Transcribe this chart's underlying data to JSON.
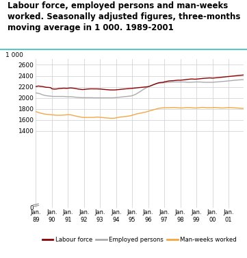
{
  "title": "Labour force, employed persons and man-weeks\nworked. Seasonally adjusted figures, three-months\nmoving average in 1 000. 1989-2001",
  "title_fontsize": 8.5,
  "header_bar_color": "#5bc8c8",
  "grid_color": "#cccccc",
  "ylabel_top": "1 000",
  "yticks": [
    0,
    1400,
    1600,
    1800,
    2000,
    2200,
    2400,
    2600
  ],
  "ylim": [
    0,
    2700
  ],
  "xtick_positions": [
    0,
    12,
    24,
    36,
    48,
    60,
    72,
    84,
    96,
    108,
    120,
    132,
    144
  ],
  "xtick_labels": [
    "Jan.\n89",
    "Jan.\n90",
    "Jan.\n91",
    "Jan.\n92",
    "Jan.\n93",
    "Jan.\n94",
    "Jan.\n95",
    "Jan.\n96",
    "Jan.\n97",
    "Jan.\n98",
    "Jan.\n99",
    "Jan.\n00",
    "Jan.\n01"
  ],
  "legend_entries": [
    {
      "label": "Labour force",
      "color": "#8b0000"
    },
    {
      "label": "Employed persons",
      "color": "#aaaaaa"
    },
    {
      "label": "Man-weeks worked",
      "color": "#f4a742"
    }
  ],
  "labour_force": [
    2205,
    2210,
    2215,
    2210,
    2208,
    2205,
    2200,
    2195,
    2190,
    2190,
    2188,
    2185,
    2165,
    2160,
    2158,
    2160,
    2162,
    2168,
    2170,
    2172,
    2175,
    2175,
    2173,
    2172,
    2175,
    2178,
    2180,
    2178,
    2175,
    2172,
    2168,
    2162,
    2158,
    2155,
    2152,
    2150,
    2152,
    2155,
    2158,
    2160,
    2162,
    2163,
    2163,
    2163,
    2163,
    2163,
    2162,
    2160,
    2160,
    2158,
    2155,
    2152,
    2150,
    2148,
    2145,
    2143,
    2143,
    2143,
    2143,
    2143,
    2145,
    2148,
    2150,
    2153,
    2155,
    2158,
    2160,
    2163,
    2165,
    2167,
    2168,
    2170,
    2172,
    2175,
    2178,
    2180,
    2183,
    2185,
    2188,
    2190,
    2193,
    2195,
    2198,
    2200,
    2205,
    2210,
    2220,
    2230,
    2240,
    2250,
    2260,
    2268,
    2275,
    2278,
    2280,
    2282,
    2290,
    2295,
    2300,
    2305,
    2308,
    2310,
    2310,
    2312,
    2315,
    2318,
    2320,
    2320,
    2320,
    2322,
    2325,
    2328,
    2332,
    2335,
    2338,
    2340,
    2342,
    2342,
    2340,
    2338,
    2340,
    2342,
    2345,
    2348,
    2350,
    2353,
    2355,
    2358,
    2360,
    2362,
    2362,
    2360,
    2358,
    2360,
    2362,
    2365,
    2368,
    2370,
    2372,
    2375,
    2378,
    2380,
    2382,
    2385,
    2388,
    2390,
    2392,
    2395,
    2398,
    2400,
    2402,
    2405,
    2408,
    2410,
    2412,
    2415
  ],
  "employed_persons": [
    2090,
    2085,
    2080,
    2075,
    2065,
    2055,
    2048,
    2042,
    2038,
    2035,
    2033,
    2030,
    2028,
    2025,
    2025,
    2025,
    2025,
    2025,
    2025,
    2025,
    2025,
    2025,
    2022,
    2020,
    2020,
    2020,
    2020,
    2018,
    2015,
    2013,
    2010,
    2008,
    2005,
    2005,
    2003,
    2002,
    2002,
    2002,
    2002,
    2002,
    2002,
    2002,
    2002,
    2000,
    2000,
    2000,
    2000,
    2000,
    2000,
    2000,
    2000,
    2000,
    2000,
    2000,
    2000,
    2000,
    2000,
    2000,
    2000,
    2002,
    2005,
    2008,
    2010,
    2012,
    2015,
    2018,
    2020,
    2022,
    2025,
    2028,
    2030,
    2033,
    2040,
    2048,
    2058,
    2070,
    2085,
    2100,
    2115,
    2130,
    2148,
    2162,
    2175,
    2188,
    2200,
    2212,
    2222,
    2232,
    2240,
    2248,
    2255,
    2260,
    2265,
    2268,
    2270,
    2272,
    2275,
    2278,
    2280,
    2282,
    2285,
    2287,
    2288,
    2288,
    2288,
    2288,
    2288,
    2288,
    2288,
    2288,
    2288,
    2288,
    2285,
    2283,
    2283,
    2283,
    2283,
    2285,
    2287,
    2288,
    2288,
    2288,
    2288,
    2288,
    2285,
    2283,
    2282,
    2282,
    2282,
    2282,
    2282,
    2282,
    2282,
    2285,
    2287,
    2288,
    2290,
    2292,
    2295,
    2297,
    2298,
    2300,
    2302,
    2305,
    2308,
    2310,
    2312,
    2315,
    2318,
    2320,
    2322,
    2325,
    2327,
    2328,
    2330,
    2330
  ],
  "manweeks_worked": [
    1750,
    1740,
    1732,
    1725,
    1718,
    1712,
    1707,
    1703,
    1700,
    1698,
    1695,
    1693,
    1690,
    1688,
    1685,
    1683,
    1682,
    1682,
    1682,
    1683,
    1685,
    1688,
    1690,
    1692,
    1693,
    1693,
    1690,
    1685,
    1678,
    1672,
    1668,
    1663,
    1658,
    1652,
    1647,
    1645,
    1643,
    1643,
    1643,
    1643,
    1643,
    1643,
    1643,
    1643,
    1645,
    1648,
    1650,
    1648,
    1645,
    1643,
    1640,
    1638,
    1635,
    1633,
    1630,
    1628,
    1628,
    1628,
    1628,
    1630,
    1635,
    1640,
    1645,
    1650,
    1653,
    1655,
    1657,
    1660,
    1663,
    1667,
    1670,
    1675,
    1682,
    1690,
    1698,
    1705,
    1710,
    1715,
    1720,
    1725,
    1730,
    1735,
    1740,
    1748,
    1755,
    1762,
    1768,
    1775,
    1782,
    1790,
    1798,
    1805,
    1810,
    1812,
    1815,
    1817,
    1820,
    1820,
    1820,
    1820,
    1820,
    1822,
    1823,
    1823,
    1823,
    1820,
    1818,
    1817,
    1815,
    1815,
    1817,
    1820,
    1822,
    1823,
    1823,
    1822,
    1820,
    1818,
    1817,
    1815,
    1815,
    1817,
    1820,
    1823,
    1825,
    1825,
    1823,
    1822,
    1820,
    1820,
    1820,
    1820,
    1822,
    1823,
    1823,
    1822,
    1820,
    1818,
    1817,
    1815,
    1815,
    1817,
    1820,
    1822,
    1823,
    1823,
    1822,
    1820,
    1818,
    1817,
    1815,
    1813,
    1810,
    1808,
    1807,
    1808
  ]
}
